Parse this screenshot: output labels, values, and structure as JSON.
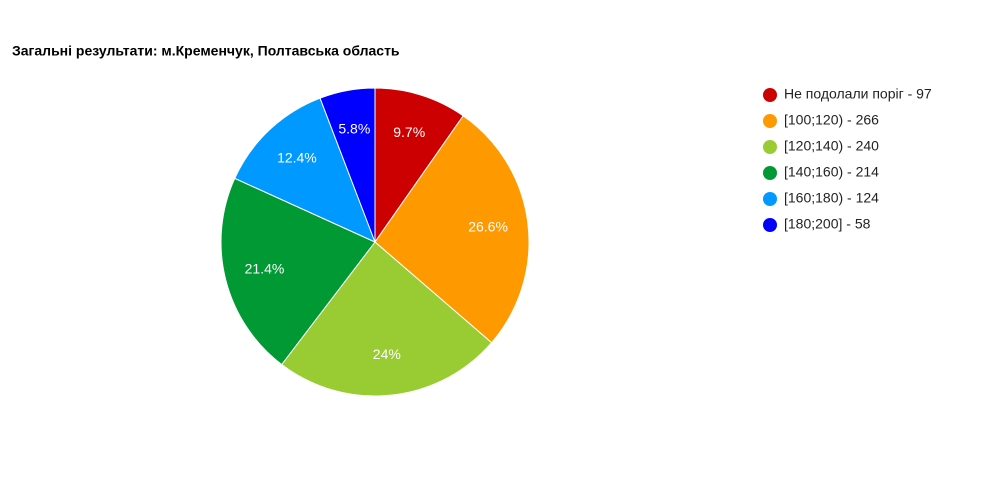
{
  "chart_data": {
    "type": "pie",
    "title": "Загальні результати: м.Кременчук, Полтавська область",
    "categories": [
      "Не подолали поріг - 97",
      "[100;120) - 266",
      "[120;140) - 240",
      "[140;160) - 214",
      "[160;180) - 124",
      "[180;200] - 58"
    ],
    "values": [
      9.7,
      26.6,
      24,
      21.4,
      12.4,
      5.8
    ],
    "value_labels": [
      "9.7%",
      "26.6%",
      "24%",
      "21.4%",
      "12.4%",
      "5.8%"
    ],
    "colors": [
      "#cc0000",
      "#ff9900",
      "#99cc33",
      "#009933",
      "#0099ff",
      "#0000ff"
    ],
    "legend": "right"
  }
}
